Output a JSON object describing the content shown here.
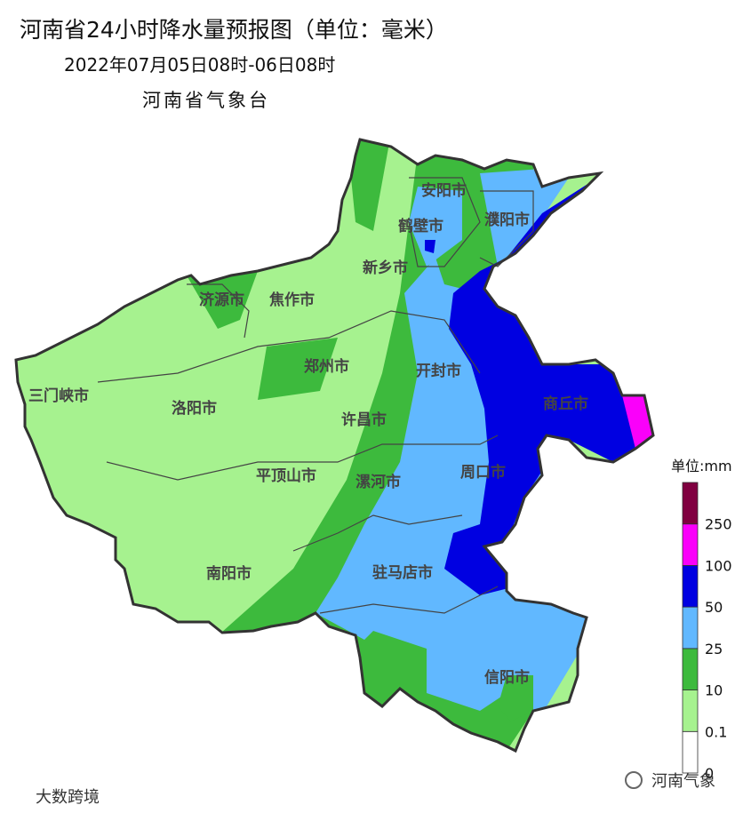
{
  "header": {
    "title": "河南省24小时降水量预报图（单位：毫米）",
    "subtitle": "2022年07月05日08时-06日08时",
    "agency": "河南省气象台"
  },
  "cities": [
    "安阳市",
    "鹤壁市",
    "濮阳市",
    "新乡市",
    "济源市",
    "焦作市",
    "郑州市",
    "开封市",
    "三门峡市",
    "洛阳市",
    "商丘市",
    "许昌市",
    "平顶山市",
    "漯河市",
    "周口市",
    "南阳市",
    "驻马店市",
    "信阳市"
  ],
  "legend": {
    "unit": "单位:mm",
    "ticks": [
      0,
      0.1,
      10,
      25,
      50,
      100,
      250
    ],
    "colors": [
      "#ffffff",
      "#a6f28f",
      "#3dba3d",
      "#61b8ff",
      "#0000e1",
      "#fa00fa",
      "#800040"
    ]
  },
  "watermarks": [
    "大数跨境",
    "河南气象"
  ]
}
